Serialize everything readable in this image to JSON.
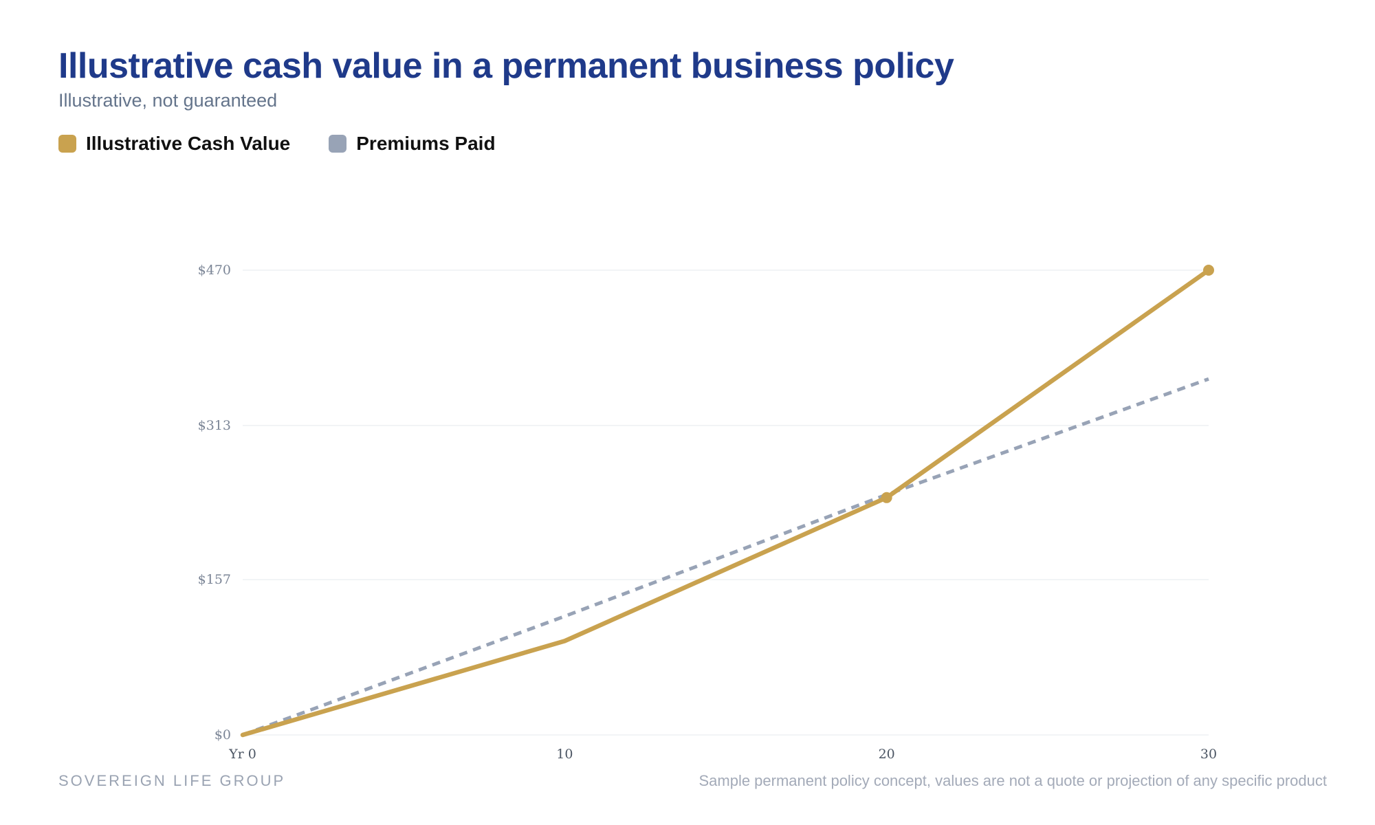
{
  "header": {
    "title": "Illustrative cash value in a permanent business policy",
    "subtitle": "Illustrative, not guaranteed"
  },
  "footer": {
    "brand": "SOVEREIGN LIFE GROUP",
    "disclaimer": "Sample permanent policy concept, values are not a quote or projection of any specific product"
  },
  "colors": {
    "cash_value": "#c9a24f",
    "premiums_paid": "#98a3b6",
    "gridline": "#eef0f3",
    "title": "#1f3a8a"
  },
  "chart_data": {
    "type": "line",
    "title": "Illustrative cash value in a permanent business policy",
    "subtitle": "Illustrative, not guaranteed",
    "x": [
      0,
      10,
      20,
      30
    ],
    "x_tick_labels": [
      "Yr 0",
      "10",
      "20",
      "30"
    ],
    "y_ticks": [
      0,
      157,
      313,
      470
    ],
    "y_tick_labels": [
      "$0",
      "$157",
      "$313",
      "$470"
    ],
    "xlim": [
      0,
      30
    ],
    "ylim": [
      0,
      470
    ],
    "grid": true,
    "legend_position": "top-left",
    "series": [
      {
        "name": "Illustrative Cash Value",
        "values": [
          0,
          95,
          240,
          470
        ],
        "style": "solid",
        "markers_at": [
          20,
          30
        ],
        "color": "#c9a24f"
      },
      {
        "name": "Premiums Paid",
        "values": [
          0,
          120,
          243,
          360
        ],
        "style": "dashed",
        "color": "#98a3b6"
      }
    ]
  }
}
